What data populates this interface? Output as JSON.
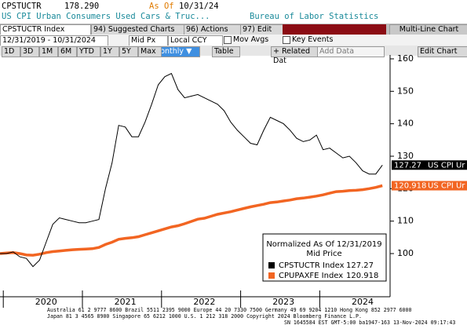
{
  "header": {
    "ticker": "CPSTUCTR",
    "last": "178.290",
    "as_of_label": "As Of",
    "as_of_date": "10/31/24",
    "description": "US CPI Urban Consumers Used Cars & Truc...",
    "source": "Bureau of Labor Statistics"
  },
  "toolbar": {
    "security": "CPSTUCTR Index",
    "suggested": "94) Suggested Charts",
    "actions": "96) Actions",
    "edit": "97) Edit",
    "chart_type": "Multi-Line Chart"
  },
  "settings": {
    "date_range": "12/31/2019 - 10/31/2024",
    "price": "Mid Px",
    "currency": "Local CCY",
    "mov_avgs": "Mov Avgs",
    "key_events": "Key Events"
  },
  "controls": {
    "periods": [
      "1D",
      "3D",
      "1M",
      "6M",
      "YTD",
      "1Y",
      "5Y",
      "Max"
    ],
    "frequency": "Monthly",
    "table": "Table",
    "related": "+ Related Dat",
    "add_data": "Add Data",
    "edit_chart": "Edit Chart"
  },
  "footer": [
    "Australia 61 2 9777 8600 Brazil 5511 2395 9000 Europe 44 20 7330 7500 Germany 49 69 9204 1210 Hong Kong 852 2977 6000",
    "Japan 81 3 4565 8900       Singapore 65 6212 1000       U.S. 1 212 318 2000       Copyright 2024 Bloomberg Finance L.P.",
    "SN 1645584 EST  GMT-5:00 ba1947-163 13-Nov-2024 09:17:43"
  ],
  "chart_data": {
    "type": "line",
    "legend_title": "Normalized As Of 12/31/2019",
    "legend_subtitle": "Mid Price",
    "categories": [
      null,
      null,
      null,
      null,
      null,
      null,
      null,
      "2020",
      null,
      null,
      null,
      null,
      null,
      null,
      null,
      null,
      null,
      null,
      null,
      "2021",
      null,
      null,
      null,
      null,
      null,
      null,
      null,
      null,
      null,
      null,
      null,
      "2022",
      null,
      null,
      null,
      null,
      null,
      null,
      null,
      null,
      null,
      null,
      null,
      "2023",
      null,
      null,
      null,
      null,
      null,
      null,
      null,
      null,
      null,
      null,
      null,
      "2024",
      null,
      null,
      null
    ],
    "series": [
      {
        "name": "CPSTUCTR Index",
        "color": "#000000",
        "end_label": "US CPI Ur",
        "values": [
          100,
          100,
          100.5,
          99,
          98.5,
          96,
          98,
          103.5,
          109,
          111,
          110.5,
          110,
          109.5,
          109.5,
          110,
          110.5,
          120,
          128,
          139.5,
          139,
          136,
          136,
          140.5,
          146,
          152,
          154.5,
          155.5,
          150.5,
          148,
          148.5,
          149,
          148,
          147,
          146,
          144,
          140.5,
          138,
          136,
          134,
          133.5,
          138,
          142,
          141,
          140,
          138,
          135.5,
          134.5,
          135,
          136.5,
          132,
          132.5,
          131,
          129.5,
          130,
          128,
          125.5,
          124.5,
          124.5,
          127.27
        ]
      },
      {
        "name": "CPUPAXFE Index",
        "color": "#f26522",
        "end_label": "US CPI Ur",
        "values": [
          100,
          100.2,
          100.3,
          100,
          99.6,
          99.5,
          99.8,
          100.3,
          100.6,
          100.8,
          101,
          101.2,
          101.3,
          101.4,
          101.5,
          101.9,
          102.8,
          103.5,
          104.4,
          104.7,
          104.9,
          105.2,
          105.8,
          106.4,
          107,
          107.6,
          108.2,
          108.6,
          109.2,
          109.9,
          110.6,
          110.9,
          111.5,
          112.1,
          112.5,
          112.9,
          113.4,
          113.9,
          114.4,
          114.8,
          115.2,
          115.7,
          115.9,
          116.2,
          116.5,
          116.9,
          117.1,
          117.4,
          117.7,
          118.1,
          118.6,
          119.1,
          119.2,
          119.4,
          119.5,
          119.7,
          120,
          120.4,
          120.918
        ]
      }
    ],
    "ylim": [
      86.7,
      161.2
    ],
    "yticks": [
      100,
      110,
      120,
      130,
      140,
      150,
      160
    ],
    "grid": false
  }
}
